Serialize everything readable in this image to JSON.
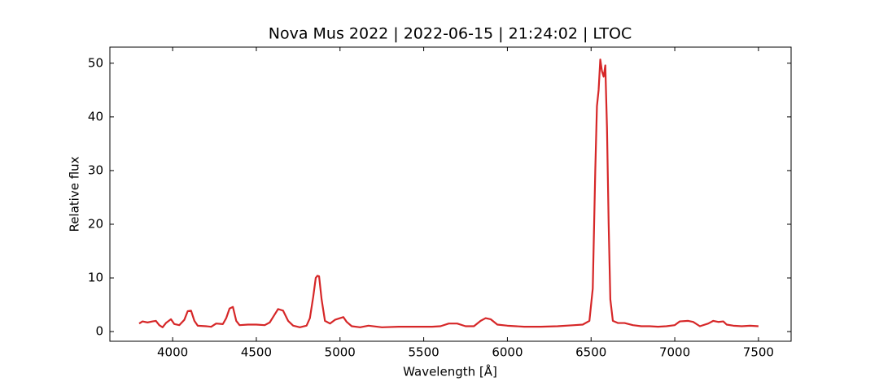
{
  "chart_data": {
    "type": "line",
    "title": "Nova Mus 2022 | 2022-06-15 | 21:24:02 | LTOC",
    "x_label": "Wavelength [Å]",
    "y_label": "Relative flux",
    "xlim": [
      3625,
      7695
    ],
    "ylim": [
      -1.8,
      53.0
    ],
    "xticks": [
      4000,
      4500,
      5000,
      5500,
      6000,
      6500,
      7000,
      7500
    ],
    "yticks": [
      0,
      10,
      20,
      30,
      40,
      50
    ],
    "grid": false,
    "x": [
      3800,
      3820,
      3850,
      3880,
      3900,
      3920,
      3940,
      3960,
      3990,
      4010,
      4040,
      4070,
      4090,
      4110,
      4130,
      4150,
      4200,
      4230,
      4260,
      4300,
      4320,
      4340,
      4360,
      4380,
      4400,
      4450,
      4500,
      4550,
      4580,
      4610,
      4630,
      4660,
      4690,
      4720,
      4760,
      4800,
      4820,
      4840,
      4855,
      4865,
      4875,
      4890,
      4910,
      4940,
      4970,
      5000,
      5020,
      5040,
      5070,
      5120,
      5170,
      5250,
      5350,
      5450,
      5550,
      5600,
      5650,
      5700,
      5750,
      5800,
      5840,
      5870,
      5900,
      5940,
      6000,
      6100,
      6200,
      6300,
      6400,
      6450,
      6490,
      6510,
      6525,
      6535,
      6545,
      6555,
      6565,
      6575,
      6585,
      6595,
      6605,
      6615,
      6630,
      6660,
      6700,
      6750,
      6800,
      6850,
      6900,
      6950,
      7000,
      7030,
      7080,
      7110,
      7150,
      7200,
      7230,
      7260,
      7290,
      7310,
      7350,
      7400,
      7450,
      7500
    ],
    "series": [
      {
        "name": "Nova Mus 2022",
        "color": "#d62728",
        "values": [
          1.5,
          1.9,
          1.7,
          1.9,
          2.0,
          1.2,
          0.8,
          1.6,
          2.3,
          1.4,
          1.2,
          2.2,
          3.8,
          3.9,
          2.0,
          1.1,
          1.0,
          0.9,
          1.5,
          1.4,
          2.5,
          4.3,
          4.6,
          2.0,
          1.2,
          1.3,
          1.3,
          1.2,
          1.7,
          3.2,
          4.2,
          3.9,
          2.0,
          1.1,
          0.8,
          1.1,
          2.5,
          6.5,
          10.0,
          10.4,
          10.3,
          6.0,
          2.0,
          1.5,
          2.2,
          2.5,
          2.7,
          1.8,
          1.0,
          0.8,
          1.1,
          0.8,
          0.9,
          0.9,
          0.9,
          1.0,
          1.5,
          1.5,
          1.0,
          1.0,
          2.0,
          2.5,
          2.3,
          1.3,
          1.1,
          0.9,
          0.9,
          1.0,
          1.2,
          1.3,
          2.0,
          8.0,
          30,
          42,
          45,
          50.7,
          48.5,
          47.5,
          49.6,
          38,
          20,
          6,
          2.0,
          1.6,
          1.6,
          1.2,
          1.0,
          1.0,
          0.9,
          1.0,
          1.2,
          1.9,
          2.0,
          1.8,
          1.0,
          1.5,
          2.0,
          1.8,
          1.9,
          1.3,
          1.1,
          1.0,
          1.1,
          1.0
        ]
      }
    ]
  }
}
